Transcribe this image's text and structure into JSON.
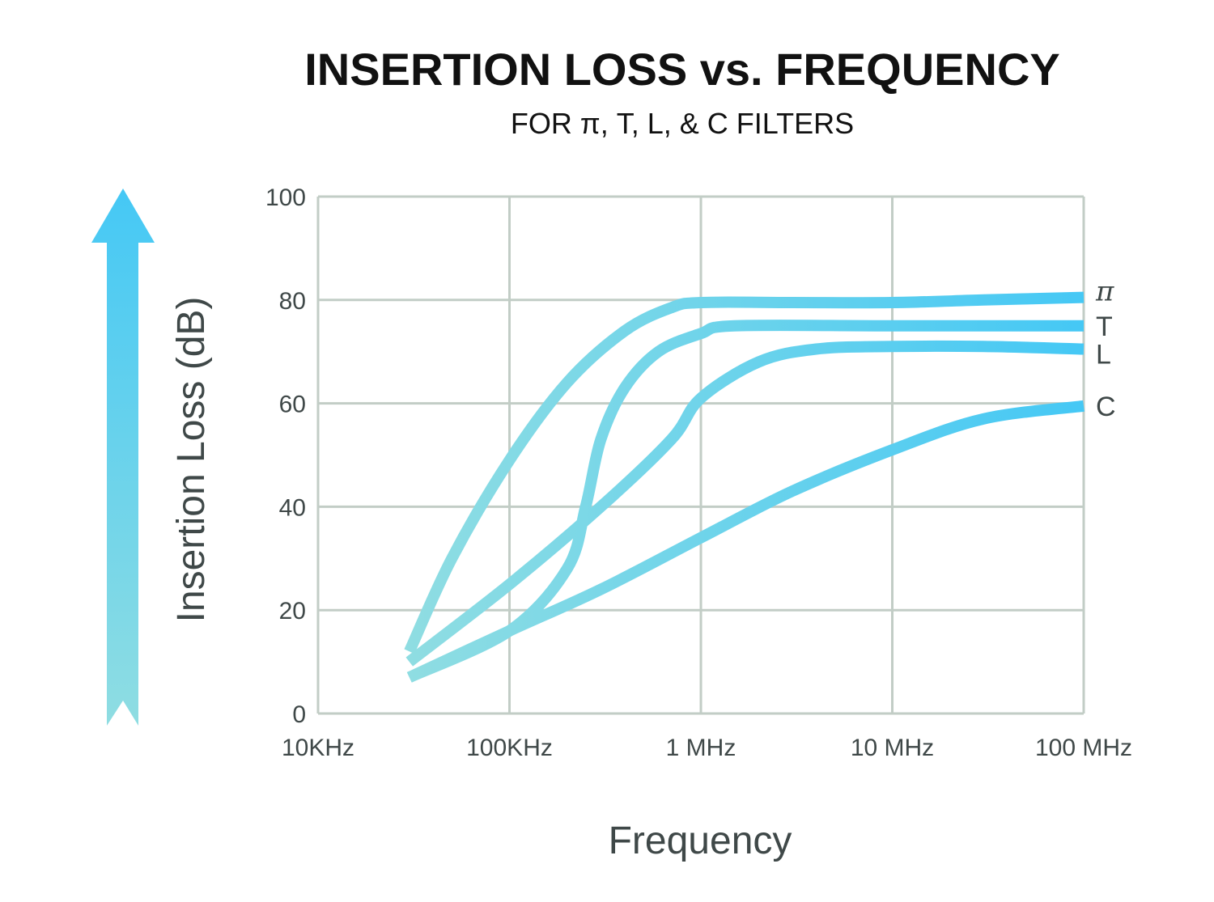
{
  "chart_data": {
    "type": "line",
    "title": "INSERTION LOSS  vs. FREQUENCY",
    "subtitle": "FOR π, T, L, & C FILTERS",
    "xlabel": "Frequency",
    "ylabel": "Insertion Loss (dB)",
    "x_scale": "log",
    "xlim": [
      "10KHz",
      "100 MHz"
    ],
    "x_tick_labels": [
      "10KHz",
      "100KHz",
      "1 MHz",
      "10 MHz",
      "100 MHz"
    ],
    "ylim": [
      0,
      100
    ],
    "y_ticks": [
      0,
      20,
      40,
      60,
      80,
      100
    ],
    "y_tick_labels": [
      "0",
      "20",
      "40",
      "60",
      "80",
      "100"
    ],
    "grid": true,
    "legend": "series labels at right end of lines",
    "colors": {
      "curve_light": "#8fdde2",
      "curve_dark": "#45c8f5",
      "arrow_top": "#45c8f5",
      "arrow_bottom": "#8fdde2",
      "grid": "#c2cdc6"
    },
    "series": [
      {
        "name": "π",
        "points": [
          [
            "30KHz",
            12
          ],
          [
            "50KHz",
            30
          ],
          [
            "100KHz",
            49
          ],
          [
            "200KHz",
            64
          ],
          [
            "400KHz",
            74
          ],
          [
            "700KHz",
            78.5
          ],
          [
            "1 MHz",
            79.5
          ],
          [
            "3 MHz",
            79.5
          ],
          [
            "10 MHz",
            79.5
          ],
          [
            "30 MHz",
            80
          ],
          [
            "100 MHz",
            80.5
          ]
        ]
      },
      {
        "name": "T",
        "points": [
          [
            "30KHz",
            7
          ],
          [
            "100KHz",
            16
          ],
          [
            "200KHz",
            28
          ],
          [
            "250KHz",
            40
          ],
          [
            "300KHz",
            53
          ],
          [
            "400KHz",
            63
          ],
          [
            "600KHz",
            70
          ],
          [
            "1 MHz",
            73.5
          ],
          [
            "1.5 MHz",
            75
          ],
          [
            "10 MHz",
            75
          ],
          [
            "100 MHz",
            75
          ]
        ]
      },
      {
        "name": "L",
        "points": [
          [
            "30KHz",
            10
          ],
          [
            "100KHz",
            25
          ],
          [
            "300KHz",
            40
          ],
          [
            "700KHz",
            53
          ],
          [
            "1 MHz",
            61
          ],
          [
            "2 MHz",
            68
          ],
          [
            "4 MHz",
            70.5
          ],
          [
            "10 MHz",
            71
          ],
          [
            "30 MHz",
            71
          ],
          [
            "100 MHz",
            70.5
          ]
        ]
      },
      {
        "name": "C",
        "points": [
          [
            "30KHz",
            7
          ],
          [
            "100KHz",
            16
          ],
          [
            "300KHz",
            24
          ],
          [
            "1 MHz",
            34
          ],
          [
            "3 MHz",
            43
          ],
          [
            "10 MHz",
            51
          ],
          [
            "30 MHz",
            57
          ],
          [
            "100 MHz",
            59.5
          ]
        ]
      }
    ]
  }
}
